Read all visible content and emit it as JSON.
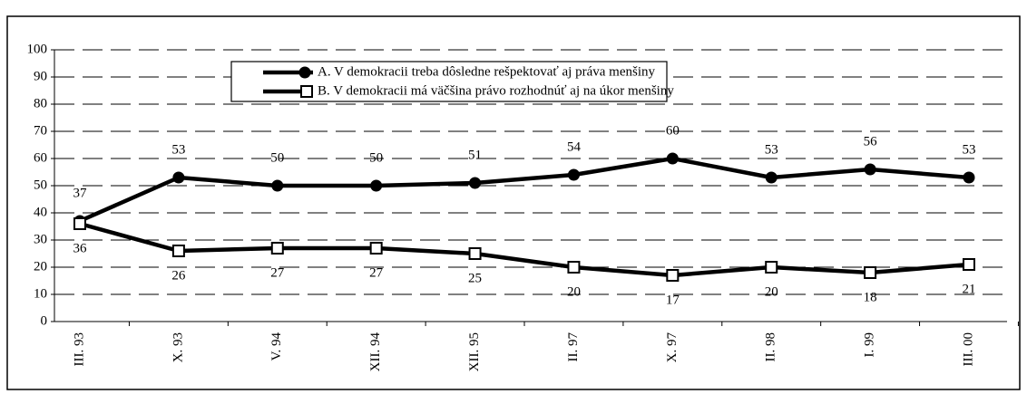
{
  "chart_data": {
    "type": "line",
    "categories": [
      "III. 93",
      "X. 93",
      "V. 94",
      "XII. 94",
      "XII. 95",
      "II. 97",
      "X. 97",
      "II. 98",
      "I. 99",
      "III. 00"
    ],
    "series": [
      {
        "name": "A. V demokracii treba dôsledne rešpektovať aj práva menšiny",
        "color": "#000000",
        "marker": "circle",
        "values": [
          37,
          53,
          50,
          50,
          51,
          54,
          60,
          53,
          56,
          53
        ]
      },
      {
        "name": "B. V demokracii má väčšina právo rozhodnúť aj na úkor menšiny",
        "color": "#000000",
        "marker": "square",
        "values": [
          36,
          26,
          27,
          27,
          25,
          20,
          17,
          20,
          18,
          21
        ]
      }
    ],
    "ylim": [
      0,
      100
    ],
    "yticks": [
      0,
      10,
      20,
      30,
      40,
      50,
      60,
      70,
      80,
      90,
      100
    ],
    "grid": true,
    "legend": "top"
  }
}
